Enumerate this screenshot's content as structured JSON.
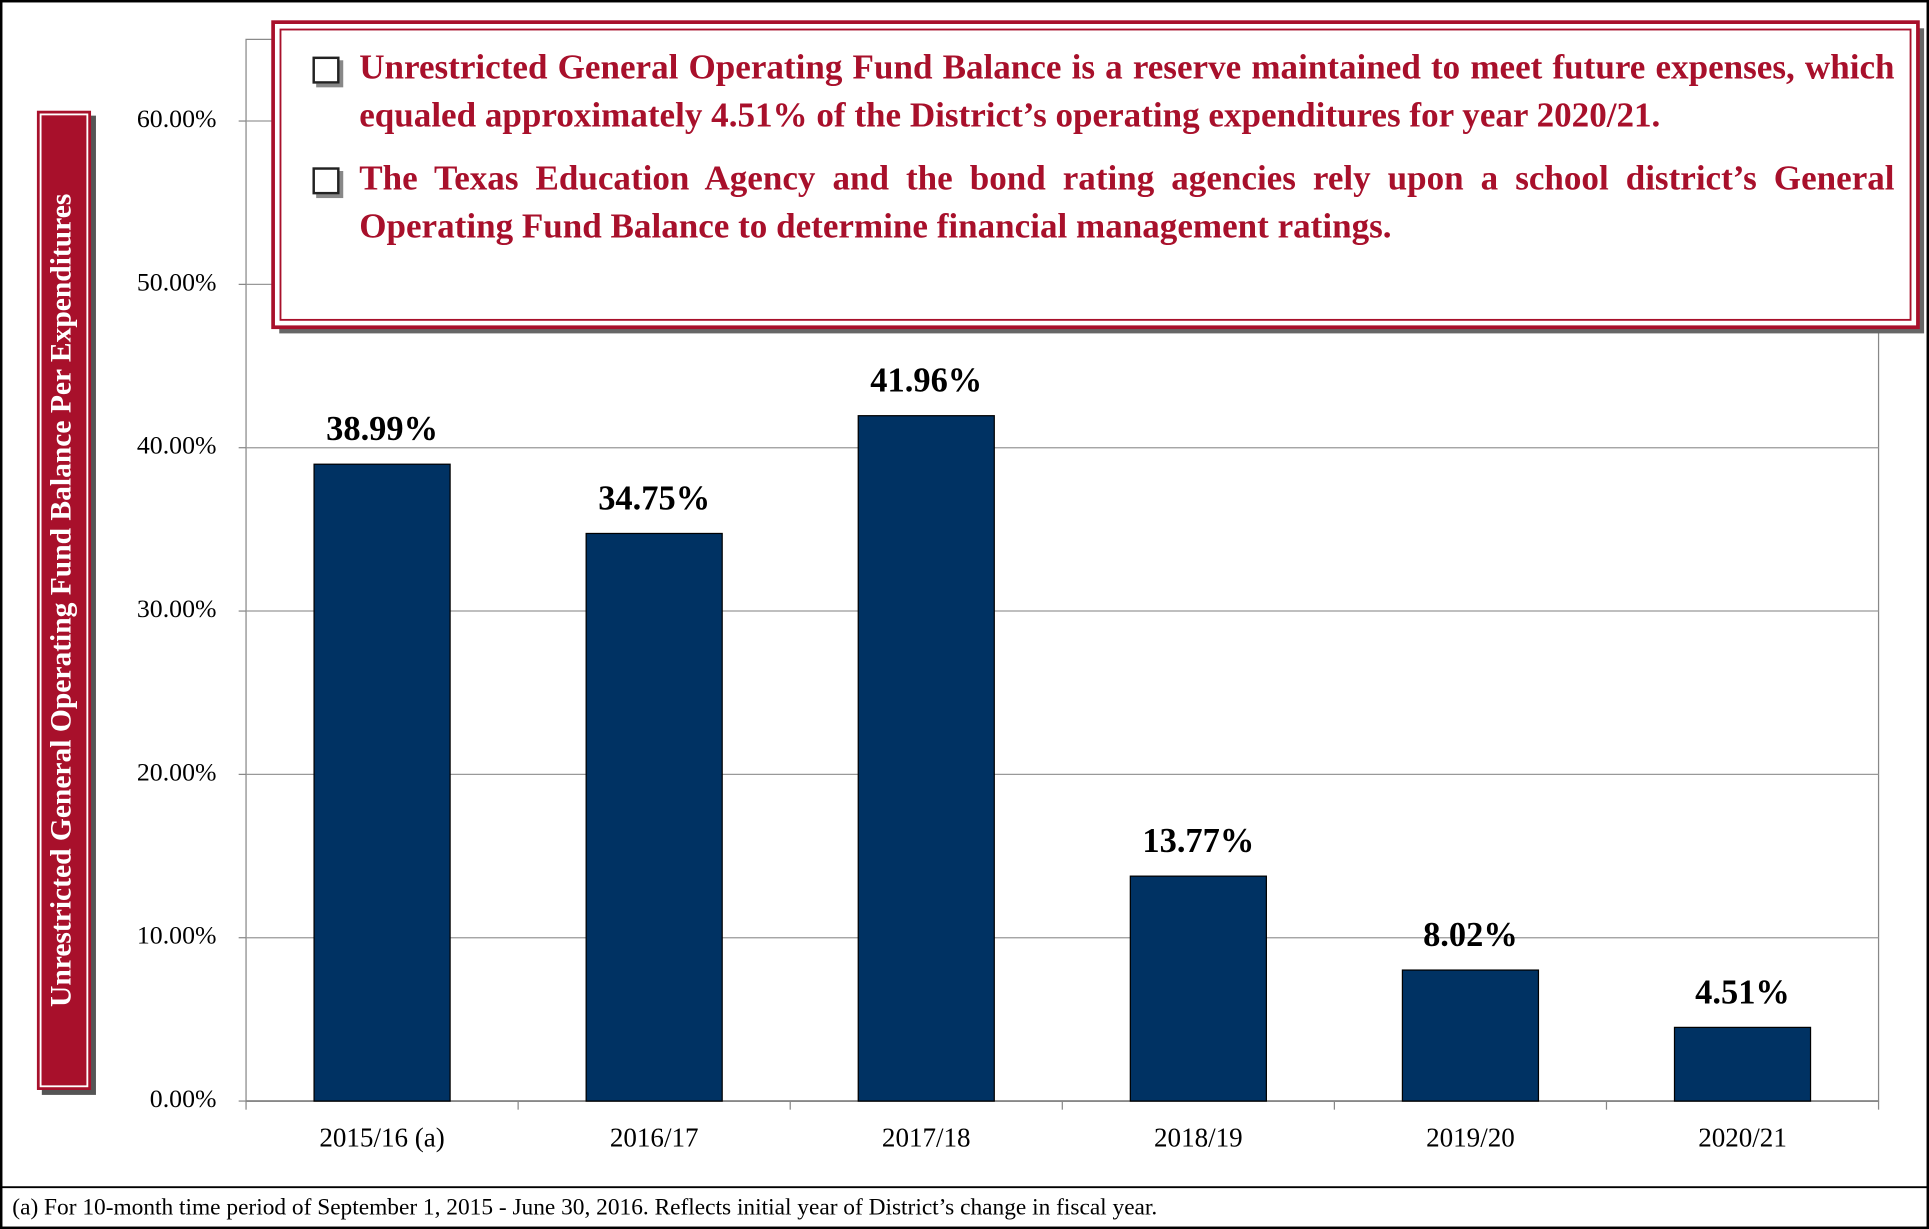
{
  "chart_data": {
    "type": "bar",
    "y_label": "Unrestricted General Operating Fund Balance Per Expenditures",
    "categories": [
      "2015/16 (a)",
      "2016/17",
      "2017/18",
      "2018/19",
      "2019/20",
      "2020/21"
    ],
    "values": [
      38.99,
      34.75,
      41.96,
      13.77,
      8.02,
      4.51
    ],
    "value_labels": [
      "38.99%",
      "34.75%",
      "41.96%",
      "13.77%",
      "8.02%",
      "4.51%"
    ],
    "color": "#003263",
    "ylim": [
      0,
      65
    ],
    "yticks": [
      {
        "value": 0,
        "label": "0.00%"
      },
      {
        "value": 10,
        "label": "10.00%"
      },
      {
        "value": 20,
        "label": "20.00%"
      },
      {
        "value": 30,
        "label": "30.00%"
      },
      {
        "value": 40,
        "label": "40.00%"
      },
      {
        "value": 50,
        "label": "50.00%"
      },
      {
        "value": 60,
        "label": "60.00%"
      }
    ],
    "grid": true,
    "annotations": [
      "Unrestricted General Operating Fund Balance is a reserve maintained to meet future expenses, which equaled approximately 4.51% of the District’s operating expenditures for year 2020/21.",
      "The Texas Education Agency and the bond rating agencies rely upon a school district’s General Operating Fund Balance to determine financial management ratings."
    ],
    "footnote": "(a)  For 10-month time period of September 1, 2015 - June 30, 2016. Reflects initial year of District’s change in fiscal year."
  }
}
